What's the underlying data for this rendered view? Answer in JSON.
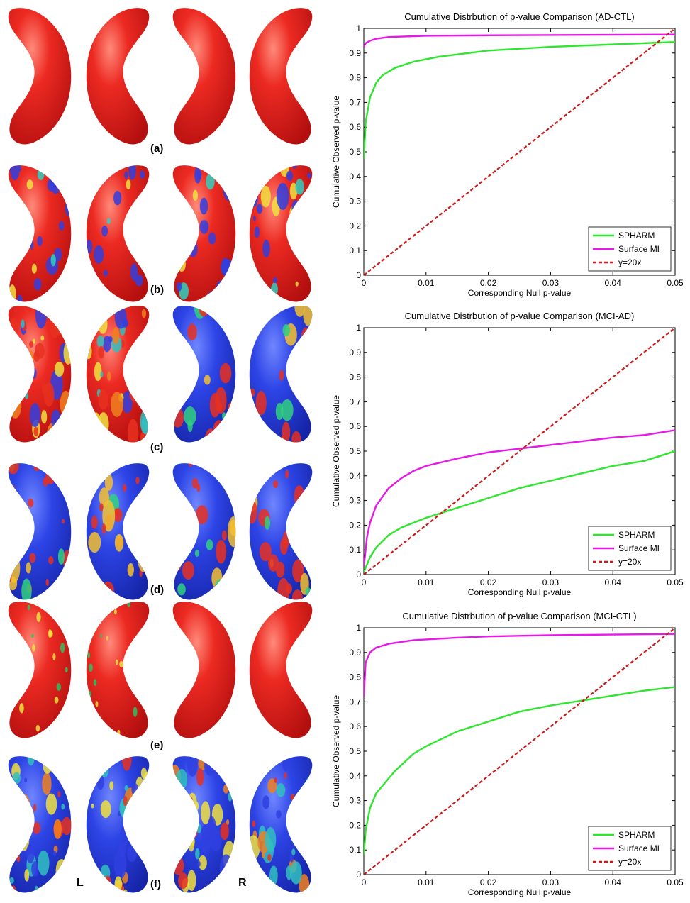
{
  "panel_labels": [
    "(a)",
    "(b)",
    "(c)",
    "(d)",
    "(e)",
    "(f)"
  ],
  "side_labels": {
    "left": "L",
    "right": "R"
  },
  "surface_map_colors": {
    "(a)": "red-dominant",
    "(b)": "red-dominant",
    "(c)": "mixed (left red, right blue)",
    "(d)": "blue-dominant",
    "(e)": "red-dominant",
    "(f)": "mixed red-blue"
  },
  "colors": {
    "spharm": "#2ee62e",
    "surface_mi": "#e619e6",
    "reference": "#cc1a1a",
    "map_red": "#e02020",
    "map_blue": "#2b3fe0"
  },
  "chart_data": [
    {
      "type": "line",
      "title": "Cumulative Distrbution of p-value Comparison (AD-CTL)",
      "xlabel": "Corresponding Null p-value",
      "ylabel": "Cumulative Observed p-value",
      "xlim": [
        0,
        0.05
      ],
      "ylim": [
        0,
        1
      ],
      "xticks": [
        "0",
        "0.01",
        "0.02",
        "0.03",
        "0.04",
        "0.05"
      ],
      "yticks": [
        "0",
        "0.1",
        "0.2",
        "0.3",
        "0.4",
        "0.5",
        "0.6",
        "0.7",
        "0.8",
        "0.9",
        "1"
      ],
      "legend_position": "bottom-right",
      "series": [
        {
          "name": "SPHARM",
          "x": [
            0,
            0.0003,
            0.001,
            0.002,
            0.003,
            0.005,
            0.008,
            0.012,
            0.02,
            0.03,
            0.04,
            0.05
          ],
          "y": [
            0.47,
            0.62,
            0.72,
            0.78,
            0.81,
            0.84,
            0.865,
            0.885,
            0.91,
            0.925,
            0.935,
            0.945
          ]
        },
        {
          "name": "Surface MI",
          "x": [
            0,
            0.0003,
            0.001,
            0.002,
            0.004,
            0.01,
            0.02,
            0.05
          ],
          "y": [
            0.925,
            0.94,
            0.95,
            0.958,
            0.965,
            0.97,
            0.972,
            0.975
          ]
        },
        {
          "name": "y=20x",
          "x": [
            0,
            0.05
          ],
          "y": [
            0,
            1
          ]
        }
      ]
    },
    {
      "type": "line",
      "title": "Cumulative Distrbution of p-value Comparison (MCI-AD)",
      "xlabel": "Corresponding Null p-value",
      "ylabel": "Cumulative Observed p-value",
      "xlim": [
        0,
        0.05
      ],
      "ylim": [
        0,
        1
      ],
      "xticks": [
        "0",
        "0.01",
        "0.02",
        "0.03",
        "0.04",
        "0.05"
      ],
      "yticks": [
        "0",
        "0.1",
        "0.2",
        "0.3",
        "0.4",
        "0.5",
        "0.6",
        "0.7",
        "0.8",
        "0.9",
        "1"
      ],
      "legend_position": "bottom-right",
      "series": [
        {
          "name": "SPHARM",
          "x": [
            0,
            0.001,
            0.002,
            0.004,
            0.006,
            0.008,
            0.01,
            0.015,
            0.02,
            0.025,
            0.03,
            0.035,
            0.04,
            0.045,
            0.05
          ],
          "y": [
            0.01,
            0.07,
            0.11,
            0.16,
            0.19,
            0.21,
            0.23,
            0.27,
            0.31,
            0.35,
            0.38,
            0.41,
            0.44,
            0.46,
            0.5
          ]
        },
        {
          "name": "Surface MI",
          "x": [
            0,
            0.0005,
            0.001,
            0.002,
            0.004,
            0.006,
            0.008,
            0.01,
            0.015,
            0.02,
            0.025,
            0.03,
            0.035,
            0.04,
            0.045,
            0.05
          ],
          "y": [
            0.03,
            0.15,
            0.21,
            0.28,
            0.35,
            0.39,
            0.42,
            0.44,
            0.47,
            0.495,
            0.51,
            0.525,
            0.54,
            0.555,
            0.565,
            0.585
          ]
        },
        {
          "name": "y=20x",
          "x": [
            0,
            0.05
          ],
          "y": [
            0,
            1
          ]
        }
      ]
    },
    {
      "type": "line",
      "title": "Cumulative Distrbution of p-value Comparison (MCI-CTL)",
      "xlabel": "Corresponding Null p-value",
      "ylabel": "Cumulative Observed p-value",
      "xlim": [
        0,
        0.05
      ],
      "ylim": [
        0,
        1
      ],
      "xticks": [
        "0",
        "0.01",
        "0.02",
        "0.03",
        "0.04",
        "0.05"
      ],
      "yticks": [
        "0",
        "0.1",
        "0.2",
        "0.3",
        "0.4",
        "0.5",
        "0.6",
        "0.7",
        "0.8",
        "0.9",
        "1"
      ],
      "legend_position": "bottom-right",
      "series": [
        {
          "name": "SPHARM",
          "x": [
            0,
            0.0003,
            0.001,
            0.002,
            0.003,
            0.005,
            0.008,
            0.01,
            0.015,
            0.02,
            0.025,
            0.03,
            0.035,
            0.04,
            0.045,
            0.05
          ],
          "y": [
            0.08,
            0.18,
            0.27,
            0.33,
            0.36,
            0.42,
            0.49,
            0.52,
            0.58,
            0.62,
            0.66,
            0.685,
            0.705,
            0.725,
            0.745,
            0.76
          ]
        },
        {
          "name": "Surface MI",
          "x": [
            0,
            0.0003,
            0.001,
            0.002,
            0.004,
            0.008,
            0.015,
            0.02,
            0.03,
            0.05
          ],
          "y": [
            0.72,
            0.86,
            0.9,
            0.92,
            0.935,
            0.95,
            0.96,
            0.965,
            0.97,
            0.975
          ]
        },
        {
          "name": "y=20x",
          "x": [
            0,
            0.05
          ],
          "y": [
            0,
            1
          ]
        }
      ]
    }
  ]
}
